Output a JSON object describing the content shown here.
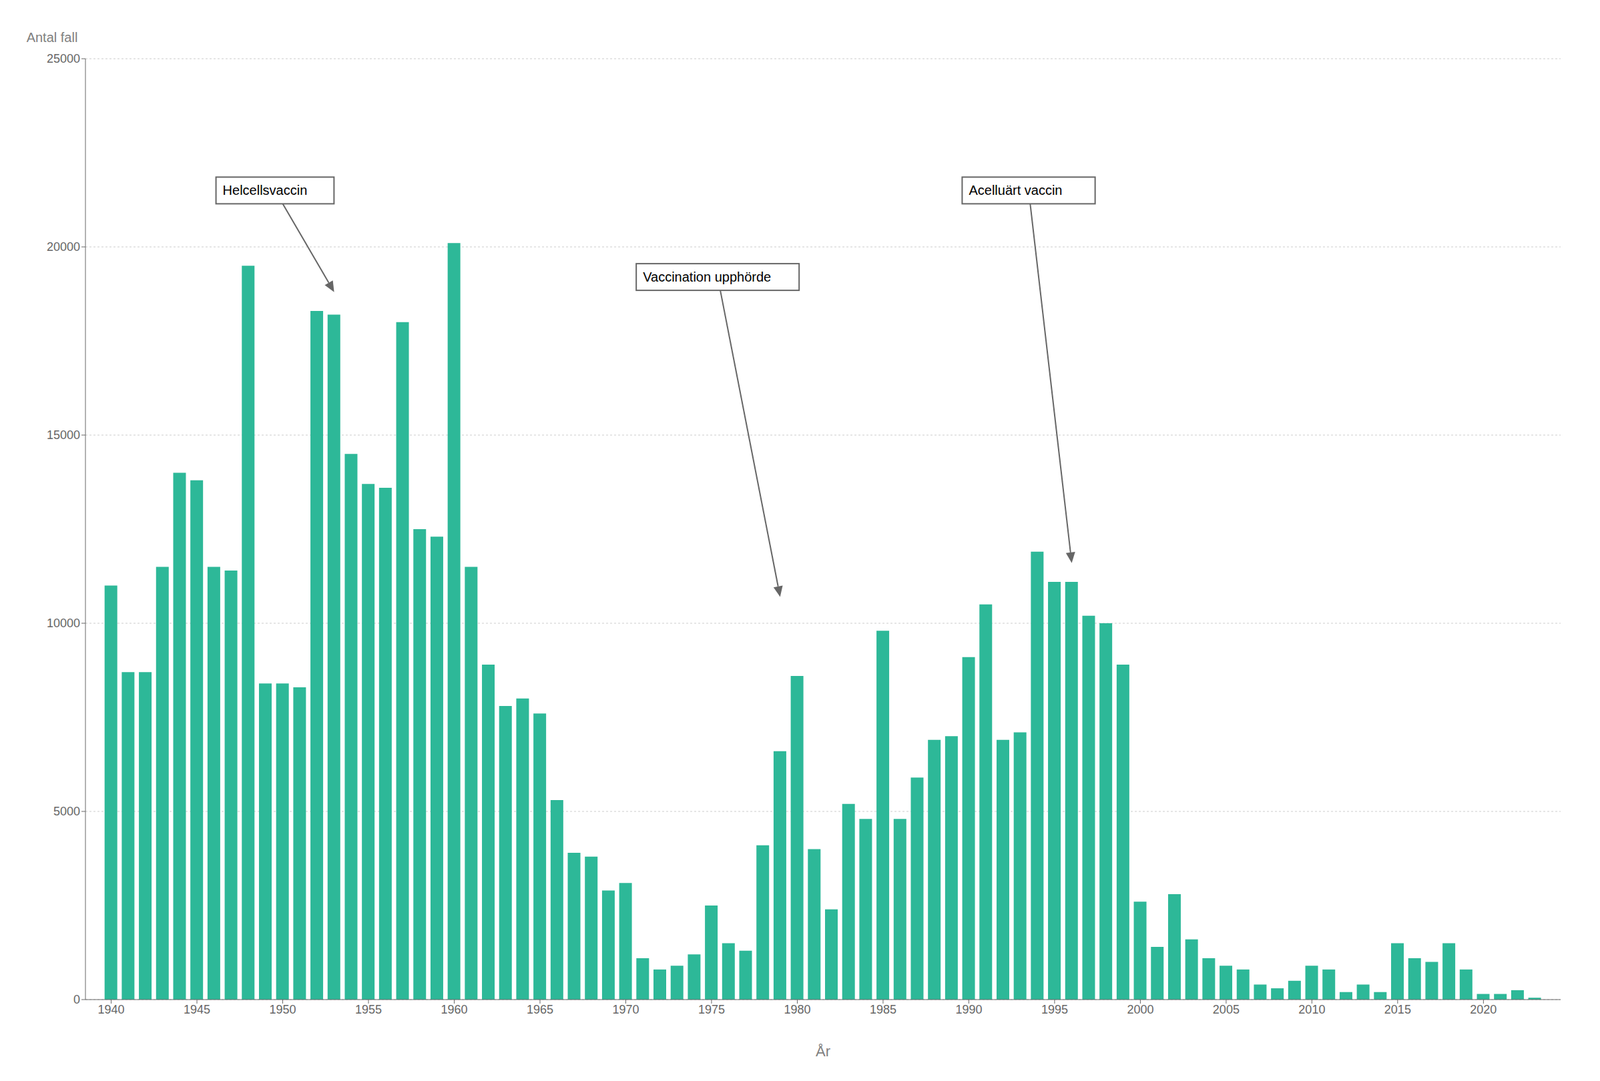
{
  "chart_data": {
    "type": "bar",
    "xlabel": "År",
    "ylabel": "Antal fall",
    "x": [
      1940,
      1941,
      1942,
      1943,
      1944,
      1945,
      1946,
      1947,
      1948,
      1949,
      1950,
      1951,
      1952,
      1953,
      1954,
      1955,
      1956,
      1957,
      1958,
      1959,
      1960,
      1961,
      1962,
      1963,
      1964,
      1965,
      1966,
      1967,
      1968,
      1969,
      1970,
      1971,
      1972,
      1973,
      1974,
      1975,
      1976,
      1977,
      1978,
      1979,
      1980,
      1981,
      1982,
      1983,
      1984,
      1985,
      1986,
      1987,
      1988,
      1989,
      1990,
      1991,
      1992,
      1993,
      1994,
      1995,
      1996,
      1997,
      1998,
      1999,
      2000,
      2001,
      2002,
      2003,
      2004,
      2005,
      2006,
      2007,
      2008,
      2009,
      2010,
      2011,
      2012,
      2013,
      2014,
      2015,
      2016,
      2017,
      2018,
      2019,
      2020,
      2021,
      2022,
      2023
    ],
    "values": [
      11000,
      8700,
      8700,
      11500,
      14000,
      13800,
      11500,
      11400,
      19500,
      8400,
      8400,
      8300,
      18300,
      18200,
      14500,
      13700,
      13600,
      18000,
      12500,
      12300,
      20100,
      11500,
      8900,
      7800,
      8000,
      7600,
      5300,
      3900,
      3800,
      2900,
      3100,
      1100,
      800,
      900,
      1200,
      2500,
      1500,
      1300,
      4100,
      6600,
      8600,
      4000,
      2400,
      5200,
      4800,
      9800,
      4800,
      5900,
      6900,
      7000,
      9100,
      10500,
      6900,
      7100,
      11900,
      11100,
      11100,
      10200,
      10000,
      8900,
      2600,
      1400,
      2800,
      1600,
      1100,
      900,
      800,
      400,
      300,
      500,
      900,
      800,
      200,
      400,
      200,
      1500,
      1100,
      1000,
      1500,
      800,
      150,
      150,
      250,
      50
    ],
    "color": "#2db898",
    "xlim": [
      1938.5,
      2024.5
    ],
    "xticks": [
      1940,
      1945,
      1950,
      1955,
      1960,
      1965,
      1970,
      1975,
      1980,
      1985,
      1990,
      1995,
      2000,
      2005,
      2010,
      2015,
      2020
    ],
    "ylim": [
      0,
      25000
    ],
    "yticks": [
      0,
      5000,
      10000,
      15000,
      20000,
      25000
    ],
    "grid": true,
    "annotations": [
      {
        "text": "Helcellsvaccin",
        "x": 1953,
        "y": 18800,
        "text_x": 1946.5,
        "text_y": 21500
      },
      {
        "text": "Vaccination upphörde",
        "x": 1979,
        "y": 10700,
        "text_x": 1971,
        "text_y": 19200
      },
      {
        "text": "Acelluärt vaccin",
        "x": 1996,
        "y": 11600,
        "text_x": 1990,
        "text_y": 21500
      }
    ]
  }
}
